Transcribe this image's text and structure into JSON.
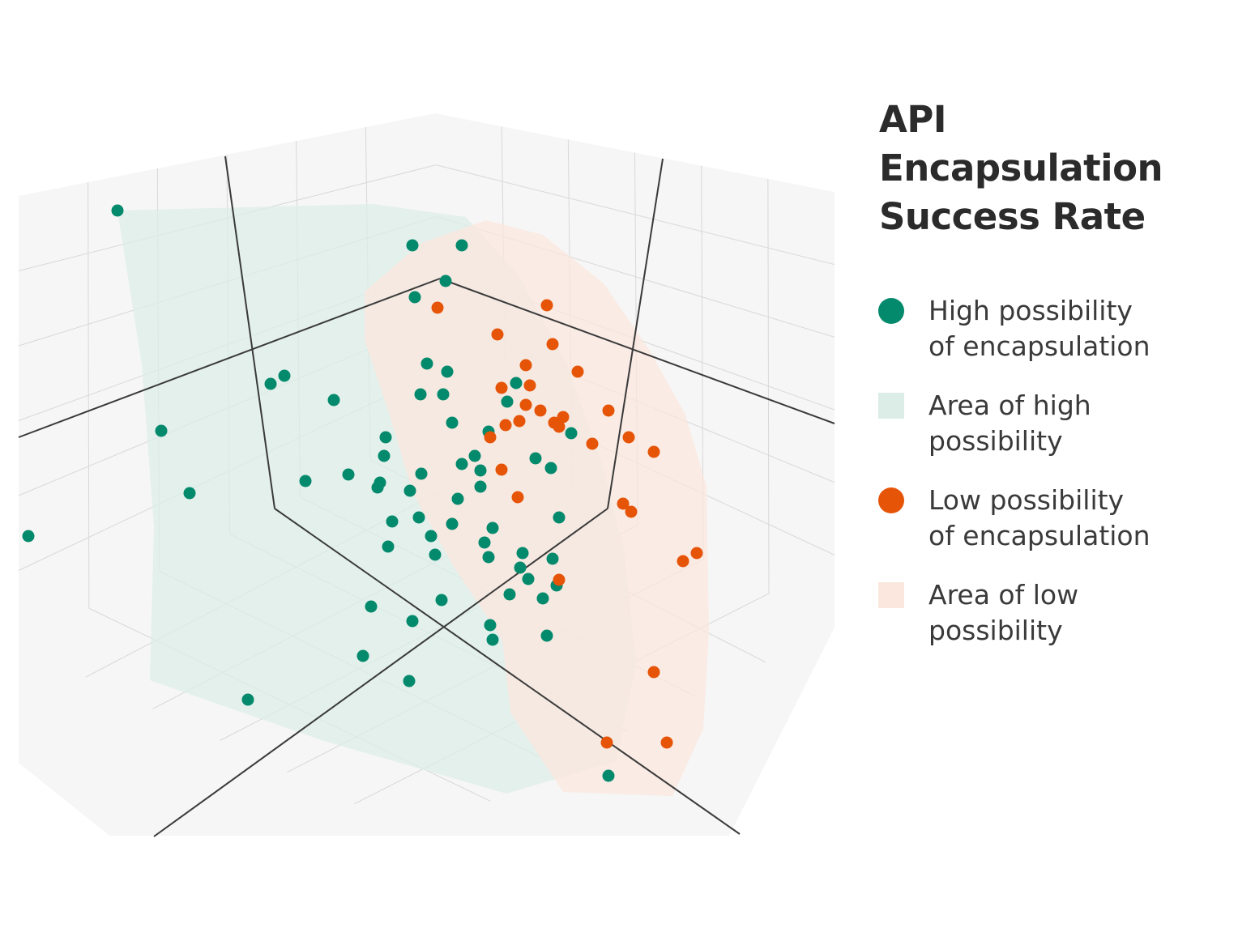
{
  "title_lines": [
    "API",
    "Encapsulation",
    "Success Rate"
  ],
  "colors": {
    "high": "#03896c",
    "high_area": "#dcede8",
    "low": "#e65408",
    "low_area": "#fbe7dd",
    "pane": "#f6f6f6",
    "grid": "#d8d8d8",
    "axis": "#3a3a3a"
  },
  "legend": [
    {
      "label_line1": "High possibility",
      "label_line2": "of encapsulation",
      "swatch": "dot",
      "color_key": "high"
    },
    {
      "label_line1": "Area of high",
      "label_line2": "possibility",
      "swatch": "square",
      "color_key": "high_area"
    },
    {
      "label_line1": "Low possibility",
      "label_line2": "of encapsulation",
      "swatch": "dot",
      "color_key": "low"
    },
    {
      "label_line1": "Area of low",
      "label_line2": "possibility",
      "swatch": "square",
      "color_key": "low_area"
    }
  ],
  "chart_data": {
    "type": "scatter",
    "projection": "3d",
    "title": "API Encapsulation Success Rate",
    "xlabel": "",
    "ylabel": "",
    "zlabel": "",
    "grid": true,
    "legend_position": "right",
    "series": [
      {
        "name": "High possibility of encapsulation",
        "color_key": "high",
        "points": [
          [
            145,
            260
          ],
          [
            509,
            303
          ],
          [
            570,
            303
          ],
          [
            550,
            347
          ],
          [
            512,
            367
          ],
          [
            527,
            449
          ],
          [
            552,
            459
          ],
          [
            351,
            464
          ],
          [
            334,
            474
          ],
          [
            519,
            487
          ],
          [
            547,
            487
          ],
          [
            412,
            494
          ],
          [
            558,
            522
          ],
          [
            199,
            532
          ],
          [
            603,
            533
          ],
          [
            476,
            540
          ],
          [
            705,
            535
          ],
          [
            637,
            473
          ],
          [
            626,
            496
          ],
          [
            474,
            563
          ],
          [
            586,
            563
          ],
          [
            661,
            566
          ],
          [
            570,
            573
          ],
          [
            680,
            578
          ],
          [
            520,
            585
          ],
          [
            593,
            581
          ],
          [
            430,
            586
          ],
          [
            377,
            594
          ],
          [
            469,
            596
          ],
          [
            466,
            602
          ],
          [
            506,
            606
          ],
          [
            593,
            601
          ],
          [
            234,
            609
          ],
          [
            565,
            616
          ],
          [
            517,
            639
          ],
          [
            484,
            644
          ],
          [
            558,
            647
          ],
          [
            690,
            639
          ],
          [
            608,
            652
          ],
          [
            35,
            662
          ],
          [
            532,
            662
          ],
          [
            598,
            670
          ],
          [
            479,
            675
          ],
          [
            645,
            683
          ],
          [
            537,
            685
          ],
          [
            603,
            688
          ],
          [
            682,
            690
          ],
          [
            642,
            701
          ],
          [
            652,
            715
          ],
          [
            687,
            723
          ],
          [
            629,
            734
          ],
          [
            670,
            739
          ],
          [
            545,
            741
          ],
          [
            458,
            749
          ],
          [
            509,
            767
          ],
          [
            605,
            772
          ],
          [
            675,
            785
          ],
          [
            608,
            790
          ],
          [
            448,
            810
          ],
          [
            505,
            841
          ],
          [
            306,
            864
          ],
          [
            751,
            958
          ]
        ]
      },
      {
        "name": "Low possibility of encapsulation",
        "color_key": "low",
        "points": [
          [
            540,
            380
          ],
          [
            675,
            377
          ],
          [
            614,
            413
          ],
          [
            682,
            425
          ],
          [
            649,
            451
          ],
          [
            713,
            459
          ],
          [
            619,
            479
          ],
          [
            654,
            476
          ],
          [
            649,
            500
          ],
          [
            667,
            507
          ],
          [
            695,
            515
          ],
          [
            751,
            507
          ],
          [
            641,
            520
          ],
          [
            624,
            525
          ],
          [
            684,
            522
          ],
          [
            690,
            527
          ],
          [
            605,
            540
          ],
          [
            731,
            548
          ],
          [
            776,
            540
          ],
          [
            807,
            558
          ],
          [
            619,
            580
          ],
          [
            639,
            614
          ],
          [
            769,
            622
          ],
          [
            779,
            632
          ],
          [
            860,
            683
          ],
          [
            843,
            693
          ],
          [
            690,
            716
          ],
          [
            807,
            830
          ],
          [
            749,
            917
          ],
          [
            823,
            917
          ]
        ]
      }
    ],
    "areas": [
      {
        "name": "Area of high possibility",
        "color_key": "high_area",
        "outline": [
          [
            145,
            260
          ],
          [
            460,
            252
          ],
          [
            575,
            268
          ],
          [
            640,
            340
          ],
          [
            700,
            450
          ],
          [
            745,
            580
          ],
          [
            770,
            680
          ],
          [
            785,
            820
          ],
          [
            760,
            940
          ],
          [
            625,
            980
          ],
          [
            400,
            915
          ],
          [
            185,
            840
          ],
          [
            190,
            650
          ],
          [
            175,
            450
          ]
        ]
      },
      {
        "name": "Area of low possibility",
        "color_key": "low_area",
        "outline": [
          [
            450,
            360
          ],
          [
            520,
            300
          ],
          [
            600,
            272
          ],
          [
            670,
            290
          ],
          [
            745,
            350
          ],
          [
            800,
            430
          ],
          [
            845,
            510
          ],
          [
            872,
            600
          ],
          [
            875,
            780
          ],
          [
            868,
            900
          ],
          [
            830,
            983
          ],
          [
            695,
            978
          ],
          [
            630,
            880
          ],
          [
            620,
            790
          ],
          [
            560,
            700
          ],
          [
            510,
            610
          ],
          [
            480,
            510
          ],
          [
            450,
            420
          ]
        ]
      }
    ]
  }
}
